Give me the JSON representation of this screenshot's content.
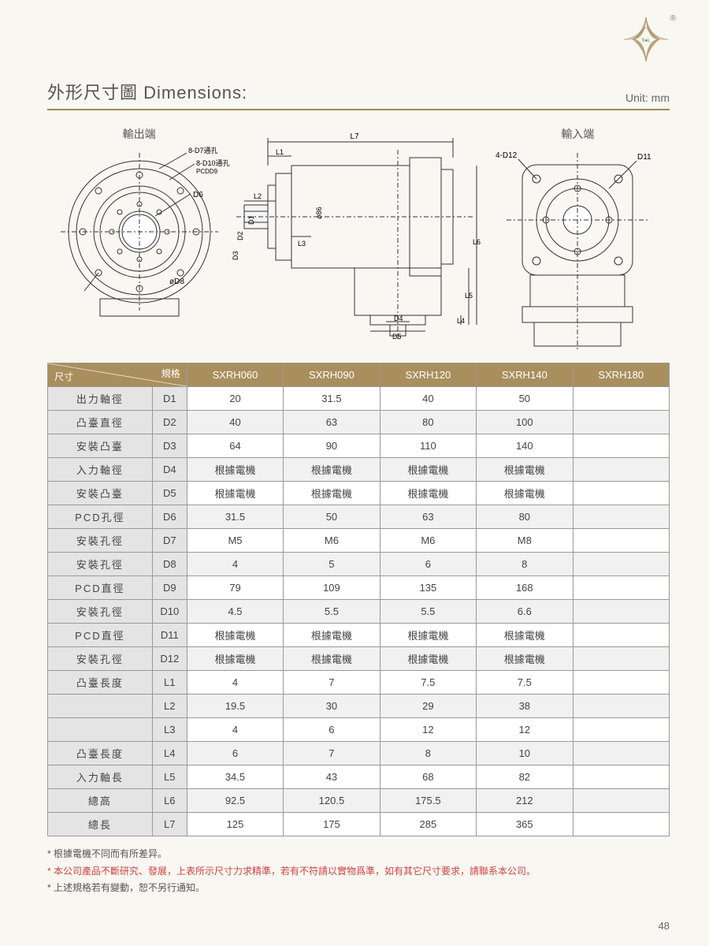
{
  "header": {
    "title": "外形尺寸圖 Dimensions:",
    "unit": "Unit: mm",
    "reg_mark": "®"
  },
  "diagram_labels": {
    "output_end": "輸出端",
    "input_end": "輸入端"
  },
  "diagram_annotations": {
    "out_top1": "8-D7通孔",
    "out_top2": "8-D10通孔",
    "out_pcd": "PCDD9",
    "out_d6": "D6",
    "out_d8": "øD8",
    "side_l7": "L7",
    "side_l1": "L1",
    "side_l2": "L2",
    "side_l3": "L3",
    "side_d1": "D1",
    "side_d2": "D2",
    "side_d3": "D3",
    "side_86": "ø86",
    "side_l4": "L4",
    "side_l5": "L5",
    "side_l6": "L6",
    "side_d4": "D4",
    "side_d5": "D5",
    "in_top": "4-D12",
    "in_d11": "D11"
  },
  "table": {
    "corner_top": "規格",
    "corner_bottom": "尺寸",
    "model_headers": [
      "SXRH060",
      "SXRH090",
      "SXRH120",
      "SXRH140",
      "SXRH180"
    ],
    "rows": [
      {
        "name": "出力軸徑",
        "code": "D1",
        "vals": [
          "20",
          "31.5",
          "40",
          "50",
          ""
        ]
      },
      {
        "name": "凸臺直徑",
        "code": "D2",
        "vals": [
          "40",
          "63",
          "80",
          "100",
          ""
        ]
      },
      {
        "name": "安裝凸臺",
        "code": "D3",
        "vals": [
          "64",
          "90",
          "110",
          "140",
          ""
        ]
      },
      {
        "name": "入力軸徑",
        "code": "D4",
        "vals": [
          "根據電機",
          "根據電機",
          "根據電機",
          "根據電機",
          ""
        ]
      },
      {
        "name": "安裝凸臺",
        "code": "D5",
        "vals": [
          "根據電機",
          "根據電機",
          "根據電機",
          "根據電機",
          ""
        ]
      },
      {
        "name": "PCD孔徑",
        "code": "D6",
        "vals": [
          "31.5",
          "50",
          "63",
          "80",
          ""
        ]
      },
      {
        "name": "安裝孔徑",
        "code": "D7",
        "vals": [
          "M5",
          "M6",
          "M6",
          "M8",
          ""
        ]
      },
      {
        "name": "安裝孔徑",
        "code": "D8",
        "vals": [
          "4",
          "5",
          "6",
          "8",
          ""
        ]
      },
      {
        "name": "PCD直徑",
        "code": "D9",
        "vals": [
          "79",
          "109",
          "135",
          "168",
          ""
        ]
      },
      {
        "name": "安裝孔徑",
        "code": "D10",
        "vals": [
          "4.5",
          "5.5",
          "5.5",
          "6.6",
          ""
        ]
      },
      {
        "name": "PCD直徑",
        "code": "D11",
        "vals": [
          "根據電機",
          "根據電機",
          "根據電機",
          "根據電機",
          ""
        ]
      },
      {
        "name": "安裝孔徑",
        "code": "D12",
        "vals": [
          "根據電機",
          "根據電機",
          "根據電機",
          "根據電機",
          ""
        ]
      },
      {
        "name": "凸臺長度",
        "code": "L1",
        "vals": [
          "4",
          "7",
          "7.5",
          "7.5",
          ""
        ]
      },
      {
        "name": "",
        "code": "L2",
        "vals": [
          "19.5",
          "30",
          "29",
          "38",
          ""
        ]
      },
      {
        "name": "",
        "code": "L3",
        "vals": [
          "4",
          "6",
          "12",
          "12",
          ""
        ]
      },
      {
        "name": "凸臺長度",
        "code": "L4",
        "vals": [
          "6",
          "7",
          "8",
          "10",
          ""
        ]
      },
      {
        "name": "入力軸長",
        "code": "L5",
        "vals": [
          "34.5",
          "43",
          "68",
          "82",
          ""
        ]
      },
      {
        "name": "總高",
        "code": "L6",
        "vals": [
          "92.5",
          "120.5",
          "175.5",
          "212",
          ""
        ]
      },
      {
        "name": "總長",
        "code": "L7",
        "vals": [
          "125",
          "175",
          "285",
          "365",
          ""
        ]
      }
    ]
  },
  "footnotes": {
    "line1": "* 根據電機不同而有所差异。",
    "line2": "* 本公司產品不斷研究、發展，上表所示尺寸力求精準，若有不符請以實物爲準，如有其它尺寸要求，請聯系本公司。",
    "line3": "* 上述規格若有變動，恕不另行通知。"
  },
  "page_number": "48",
  "colors": {
    "accent": "#a98f5d",
    "page_bg": "#f9f7f2",
    "row_alt": "#f1f1f1",
    "row_label": "#e4e4e4",
    "text": "#555",
    "red": "#c44"
  }
}
